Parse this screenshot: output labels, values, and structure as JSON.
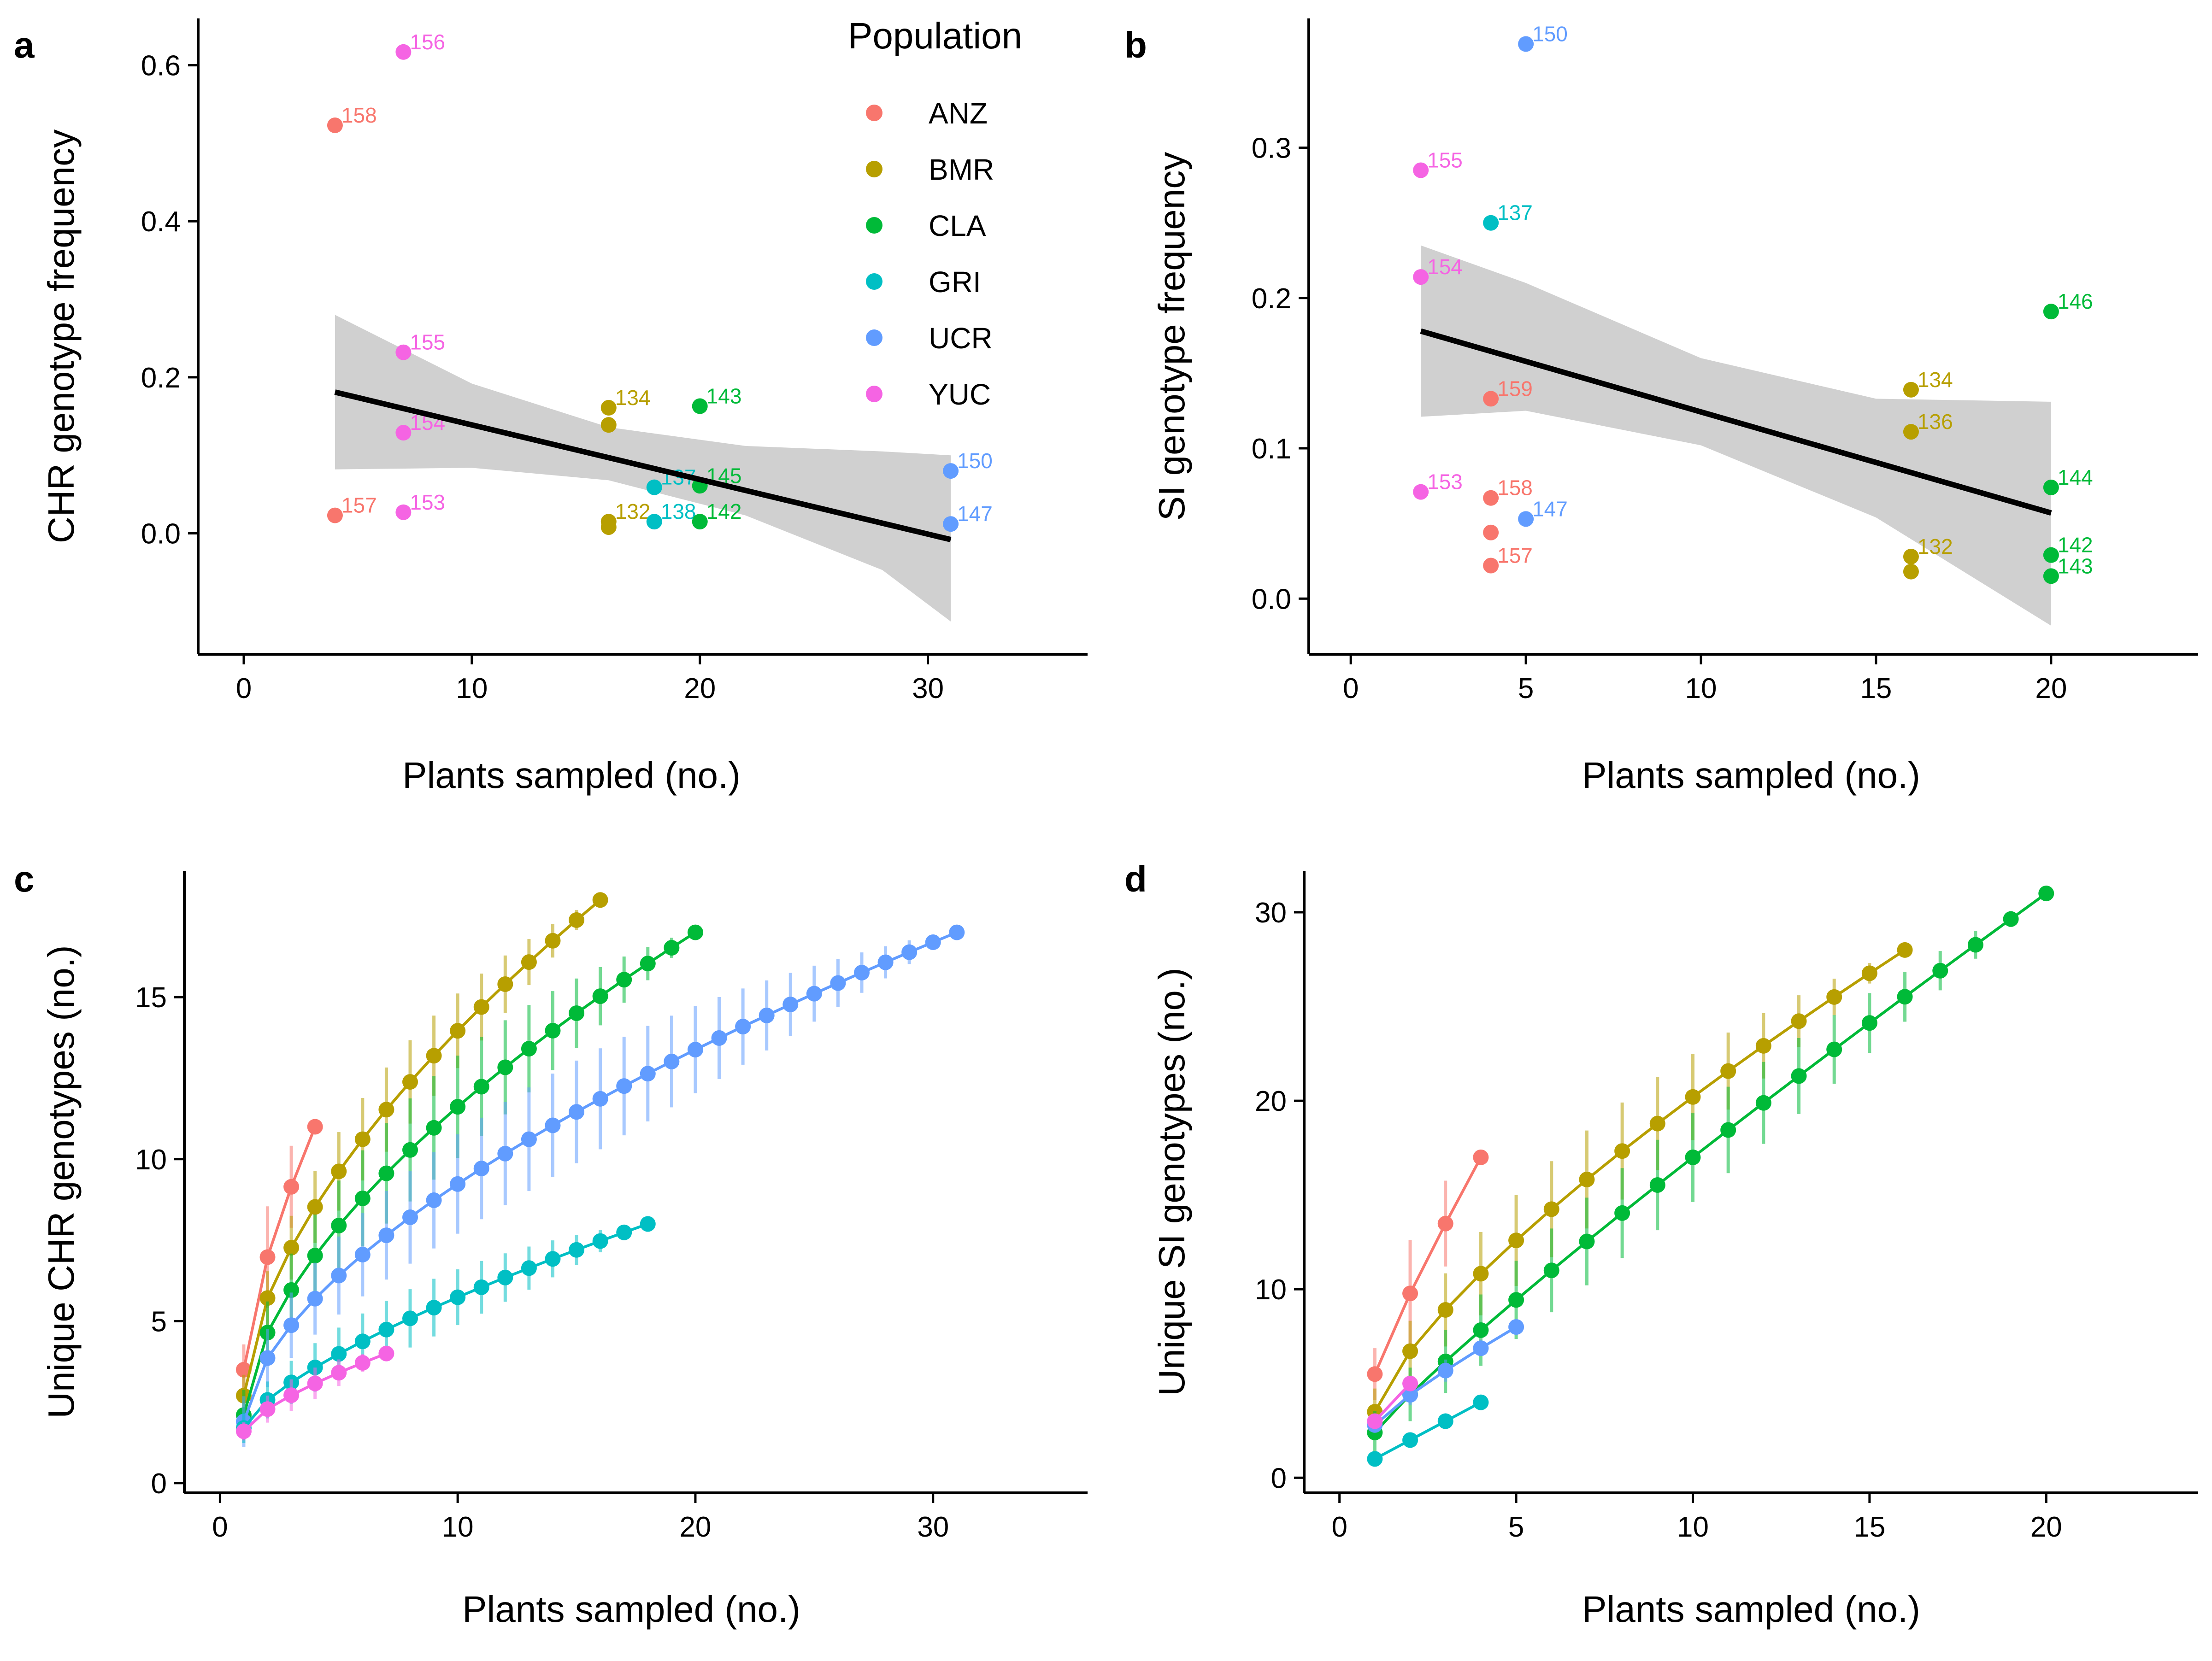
{
  "legend": {
    "title": "Population",
    "entries": [
      {
        "name": "ANZ",
        "color": "#F8766D"
      },
      {
        "name": "BMR",
        "color": "#B79F00"
      },
      {
        "name": "CLA",
        "color": "#00BA38"
      },
      {
        "name": "GRI",
        "color": "#00BFC4"
      },
      {
        "name": "UCR",
        "color": "#619CFF"
      },
      {
        "name": "YUC",
        "color": "#F564E3"
      }
    ]
  },
  "chart_data": [
    {
      "panel": "a",
      "type": "scatter",
      "xlabel": "Plants sampled (no.)",
      "ylabel": "CHR genotype frequency",
      "xlim": [
        -2,
        37
      ],
      "ylim": [
        -0.155,
        0.66
      ],
      "xticks": [
        0,
        10,
        20,
        30
      ],
      "yticks": [
        0.0,
        0.2,
        0.4,
        0.6
      ],
      "ytick_labels": [
        "0.0",
        "0.2",
        "0.4",
        "0.6"
      ],
      "points": [
        {
          "x": 7,
          "y": 0.617,
          "pop": "YUC",
          "label": "156"
        },
        {
          "x": 4,
          "y": 0.523,
          "pop": "ANZ",
          "label": "158"
        },
        {
          "x": 7,
          "y": 0.232,
          "pop": "YUC",
          "label": "155"
        },
        {
          "x": 7,
          "y": 0.129,
          "pop": "YUC",
          "label": "154"
        },
        {
          "x": 4,
          "y": 0.023,
          "pop": "ANZ",
          "label": "157"
        },
        {
          "x": 7,
          "y": 0.027,
          "pop": "YUC",
          "label": "153"
        },
        {
          "x": 16,
          "y": 0.161,
          "pop": "BMR",
          "label": "134"
        },
        {
          "x": 16,
          "y": 0.139,
          "pop": "BMR",
          "label": ""
        },
        {
          "x": 16,
          "y": 0.015,
          "pop": "BMR",
          "label": "132"
        },
        {
          "x": 16,
          "y": 0.008,
          "pop": "BMR",
          "label": ""
        },
        {
          "x": 18,
          "y": 0.059,
          "pop": "GRI",
          "label": "137"
        },
        {
          "x": 18,
          "y": 0.015,
          "pop": "GRI",
          "label": "138"
        },
        {
          "x": 20,
          "y": 0.163,
          "pop": "CLA",
          "label": "143"
        },
        {
          "x": 20,
          "y": 0.061,
          "pop": "CLA",
          "label": "145"
        },
        {
          "x": 20,
          "y": 0.015,
          "pop": "CLA",
          "label": "142"
        },
        {
          "x": 31,
          "y": 0.08,
          "pop": "UCR",
          "label": "150"
        },
        {
          "x": 31,
          "y": 0.012,
          "pop": "UCR",
          "label": "147"
        }
      ],
      "fit": {
        "x": [
          4,
          31
        ],
        "y": [
          0.181,
          -0.008
        ]
      },
      "band": {
        "x": [
          4,
          10,
          16,
          22,
          28,
          31
        ],
        "lower": [
          0.082,
          0.084,
          0.068,
          0.023,
          -0.047,
          -0.113
        ],
        "upper": [
          0.28,
          0.192,
          0.136,
          0.112,
          0.105,
          0.1
        ]
      }
    },
    {
      "panel": "b",
      "type": "scatter",
      "xlabel": "Plants sampled (no.)",
      "ylabel": "SI genotype frequency",
      "xlim": [
        -1.2,
        24.2
      ],
      "ylim": [
        -0.037,
        0.386
      ],
      "xticks": [
        0,
        5,
        10,
        15,
        20
      ],
      "yticks": [
        0.0,
        0.1,
        0.2,
        0.3
      ],
      "ytick_labels": [
        "0.0",
        "0.1",
        "0.2",
        "0.3"
      ],
      "points": [
        {
          "x": 5,
          "y": 0.369,
          "pop": "UCR",
          "label": "150"
        },
        {
          "x": 2,
          "y": 0.285,
          "pop": "YUC",
          "label": "155"
        },
        {
          "x": 4,
          "y": 0.25,
          "pop": "GRI",
          "label": "137"
        },
        {
          "x": 2,
          "y": 0.214,
          "pop": "YUC",
          "label": "154"
        },
        {
          "x": 4,
          "y": 0.133,
          "pop": "ANZ",
          "label": "159"
        },
        {
          "x": 2,
          "y": 0.071,
          "pop": "YUC",
          "label": "153"
        },
        {
          "x": 4,
          "y": 0.067,
          "pop": "ANZ",
          "label": "158"
        },
        {
          "x": 5,
          "y": 0.053,
          "pop": "UCR",
          "label": "147"
        },
        {
          "x": 4,
          "y": 0.044,
          "pop": "ANZ",
          "label": ""
        },
        {
          "x": 4,
          "y": 0.022,
          "pop": "ANZ",
          "label": "157"
        },
        {
          "x": 16,
          "y": 0.139,
          "pop": "BMR",
          "label": "134"
        },
        {
          "x": 16,
          "y": 0.111,
          "pop": "BMR",
          "label": "136"
        },
        {
          "x": 16,
          "y": 0.028,
          "pop": "BMR",
          "label": "132"
        },
        {
          "x": 16,
          "y": 0.018,
          "pop": "BMR",
          "label": ""
        },
        {
          "x": 20,
          "y": 0.191,
          "pop": "CLA",
          "label": "146"
        },
        {
          "x": 20,
          "y": 0.074,
          "pop": "CLA",
          "label": "144"
        },
        {
          "x": 20,
          "y": 0.029,
          "pop": "CLA",
          "label": "142"
        },
        {
          "x": 20,
          "y": 0.015,
          "pop": "CLA",
          "label": "143"
        }
      ],
      "fit": {
        "x": [
          2,
          20
        ],
        "y": [
          0.178,
          0.057
        ]
      },
      "band": {
        "x": [
          2,
          5,
          10,
          15,
          20
        ],
        "lower": [
          0.121,
          0.125,
          0.102,
          0.054,
          -0.018
        ],
        "upper": [
          0.235,
          0.21,
          0.16,
          0.133,
          0.131
        ]
      }
    },
    {
      "panel": "c",
      "type": "line",
      "xlabel": "Plants sampled (no.)",
      "ylabel": "Unique CHR genotypes (no.)",
      "xlim": [
        -1.5,
        36.5
      ],
      "ylim": [
        -0.3,
        18.9
      ],
      "xticks": [
        0,
        10,
        20,
        30
      ],
      "yticks": [
        0,
        5,
        10,
        15
      ],
      "ytick_labels": [
        "0",
        "5",
        "10",
        "15"
      ],
      "series": [
        {
          "pop": "ANZ",
          "n": 4,
          "end": 11,
          "ymin": 3.5,
          "curv": 0.7,
          "err": 1.5
        },
        {
          "pop": "BMR",
          "n": 16,
          "end": 18,
          "ymin": 2.7,
          "curv": 0.6,
          "err": 1.2
        },
        {
          "pop": "CLA",
          "n": 20,
          "end": 17,
          "ymin": 2.1,
          "curv": 0.6,
          "err": 1.5
        },
        {
          "pop": "UCR",
          "n": 31,
          "end": 17,
          "ymin": 1.9,
          "curv": 0.6,
          "err": 1.5
        },
        {
          "pop": "GRI",
          "n": 18,
          "end": 8,
          "ymin": 1.7,
          "curv": 0.7,
          "err": 0.8
        },
        {
          "pop": "YUC",
          "n": 7,
          "end": 4,
          "ymin": 1.6,
          "curv": 0.7,
          "err": 0.4
        }
      ]
    },
    {
      "panel": "d",
      "type": "line",
      "xlabel": "Plants sampled (no.)",
      "ylabel": "Unique SI genotypes (no.)",
      "xlim": [
        -1.0,
        24.3
      ],
      "ylim": [
        -0.8,
        32.2
      ],
      "xticks": [
        0,
        5,
        10,
        15,
        20
      ],
      "yticks": [
        0,
        10,
        20,
        30
      ],
      "ytick_labels": [
        "0",
        "10",
        "20",
        "30"
      ],
      "series": [
        {
          "pop": "ANZ",
          "n": 4,
          "end": 17,
          "ymin": 5.5,
          "curv": 0.9,
          "err": 2.8
        },
        {
          "pop": "BMR",
          "n": 16,
          "end": 28,
          "ymin": 3.5,
          "curv": 0.75,
          "err": 2.5
        },
        {
          "pop": "CLA",
          "n": 20,
          "end": 31,
          "ymin": 2.4,
          "curv": 0.9,
          "err": 2.3
        },
        {
          "pop": "UCR",
          "n": 5,
          "end": 8,
          "ymin": 2.8,
          "curv": 0.85,
          "err": 0.5
        },
        {
          "pop": "YUC",
          "n": 2,
          "end": 5,
          "ymin": 3.0,
          "curv": 1.0,
          "err": 0.3
        },
        {
          "pop": "GRI",
          "n": 4,
          "end": 4,
          "ymin": 1.0,
          "curv": 1.0,
          "err": 0.1
        }
      ]
    }
  ]
}
